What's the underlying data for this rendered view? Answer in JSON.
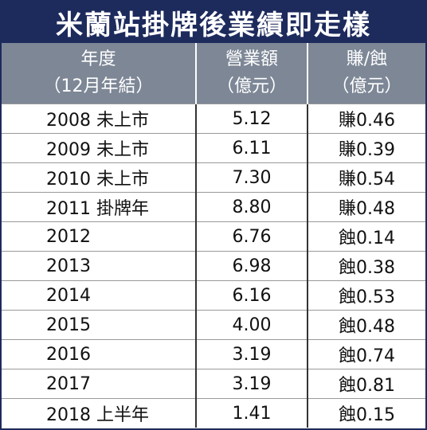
{
  "title": "米蘭站掛牌後業績即走樣",
  "table": {
    "header": [
      [
        "年度",
        "（12月年結）"
      ],
      [
        "營業額",
        "（億元）"
      ],
      [
        "賺/蝕",
        "（億元）"
      ]
    ],
    "rows": [
      [
        "2008 未上市",
        "5.12",
        "賺0.46"
      ],
      [
        "2009 未上市",
        "6.11",
        "賺0.39"
      ],
      [
        "2010 未上市",
        "7.30",
        "賺0.54"
      ],
      [
        "2011 掛牌年",
        "8.80",
        "賺0.48"
      ],
      [
        "2012",
        "6.76",
        "蝕0.14"
      ],
      [
        "2013",
        "6.98",
        "蝕0.38"
      ],
      [
        "2014",
        "6.16",
        "蝕0.53"
      ],
      [
        "2015",
        "4.00",
        "蝕0.48"
      ],
      [
        "2016",
        "3.19",
        "蝕0.74"
      ],
      [
        "2017",
        "3.19",
        "蝕0.81"
      ],
      [
        "2018 上半年",
        "1.41",
        "蝕0.15"
      ]
    ]
  }
}
